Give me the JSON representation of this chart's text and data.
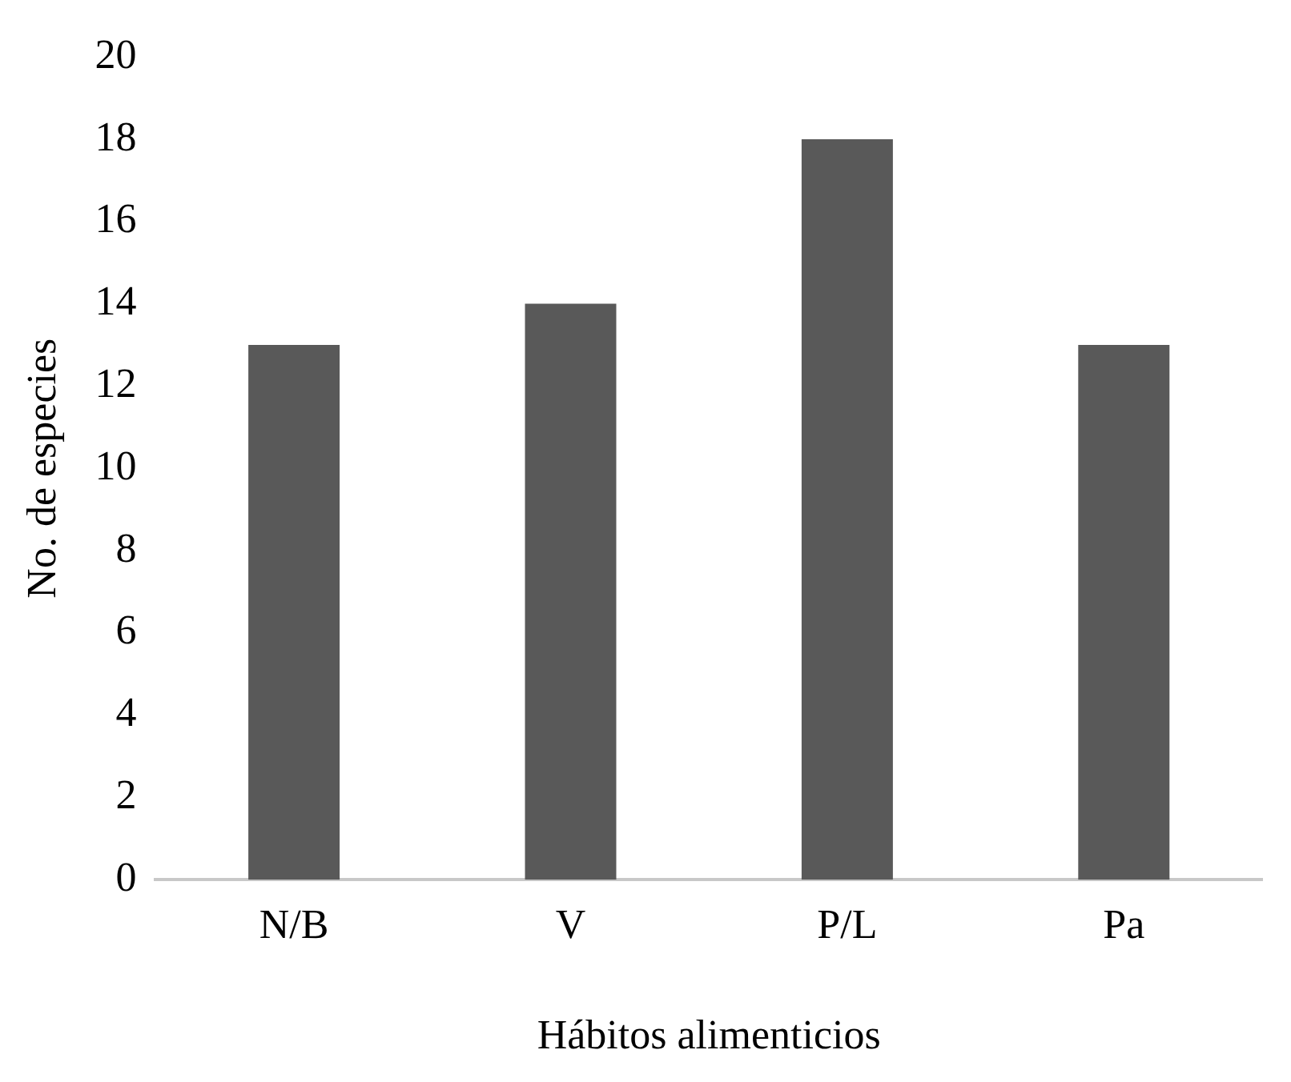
{
  "chart_data": {
    "type": "bar",
    "xlabel": "Hábitos alimenticios",
    "ylabel": "No. de especies",
    "categories": [
      "N/B",
      "V",
      "P/L",
      "Pa"
    ],
    "values": [
      13,
      14,
      18,
      13
    ],
    "color": "#595959",
    "ylim": [
      0,
      20
    ],
    "yticks": [
      0,
      2,
      4,
      6,
      8,
      10,
      12,
      14,
      16,
      18,
      20
    ],
    "grid": false,
    "legend": false
  }
}
